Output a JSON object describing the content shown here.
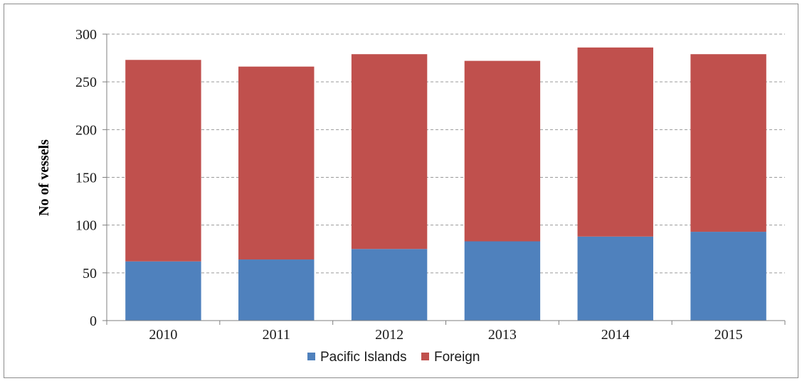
{
  "chart_data": {
    "type": "bar",
    "stacked": true,
    "title": "",
    "xlabel": "",
    "ylabel": "No of vessels",
    "ylim": [
      0,
      300
    ],
    "yticks": [
      0,
      50,
      100,
      150,
      200,
      250,
      300
    ],
    "grid": "horizontal dashed",
    "legend_position": "bottom",
    "categories": [
      "2010",
      "2011",
      "2012",
      "2013",
      "2014",
      "2015"
    ],
    "series": [
      {
        "name": "Pacific Islands",
        "color": "#4f81bd",
        "values": [
          62,
          64,
          75,
          83,
          88,
          93
        ]
      },
      {
        "name": "Foreign",
        "color": "#c0504d",
        "values": [
          211,
          202,
          204,
          189,
          198,
          186
        ]
      }
    ]
  }
}
